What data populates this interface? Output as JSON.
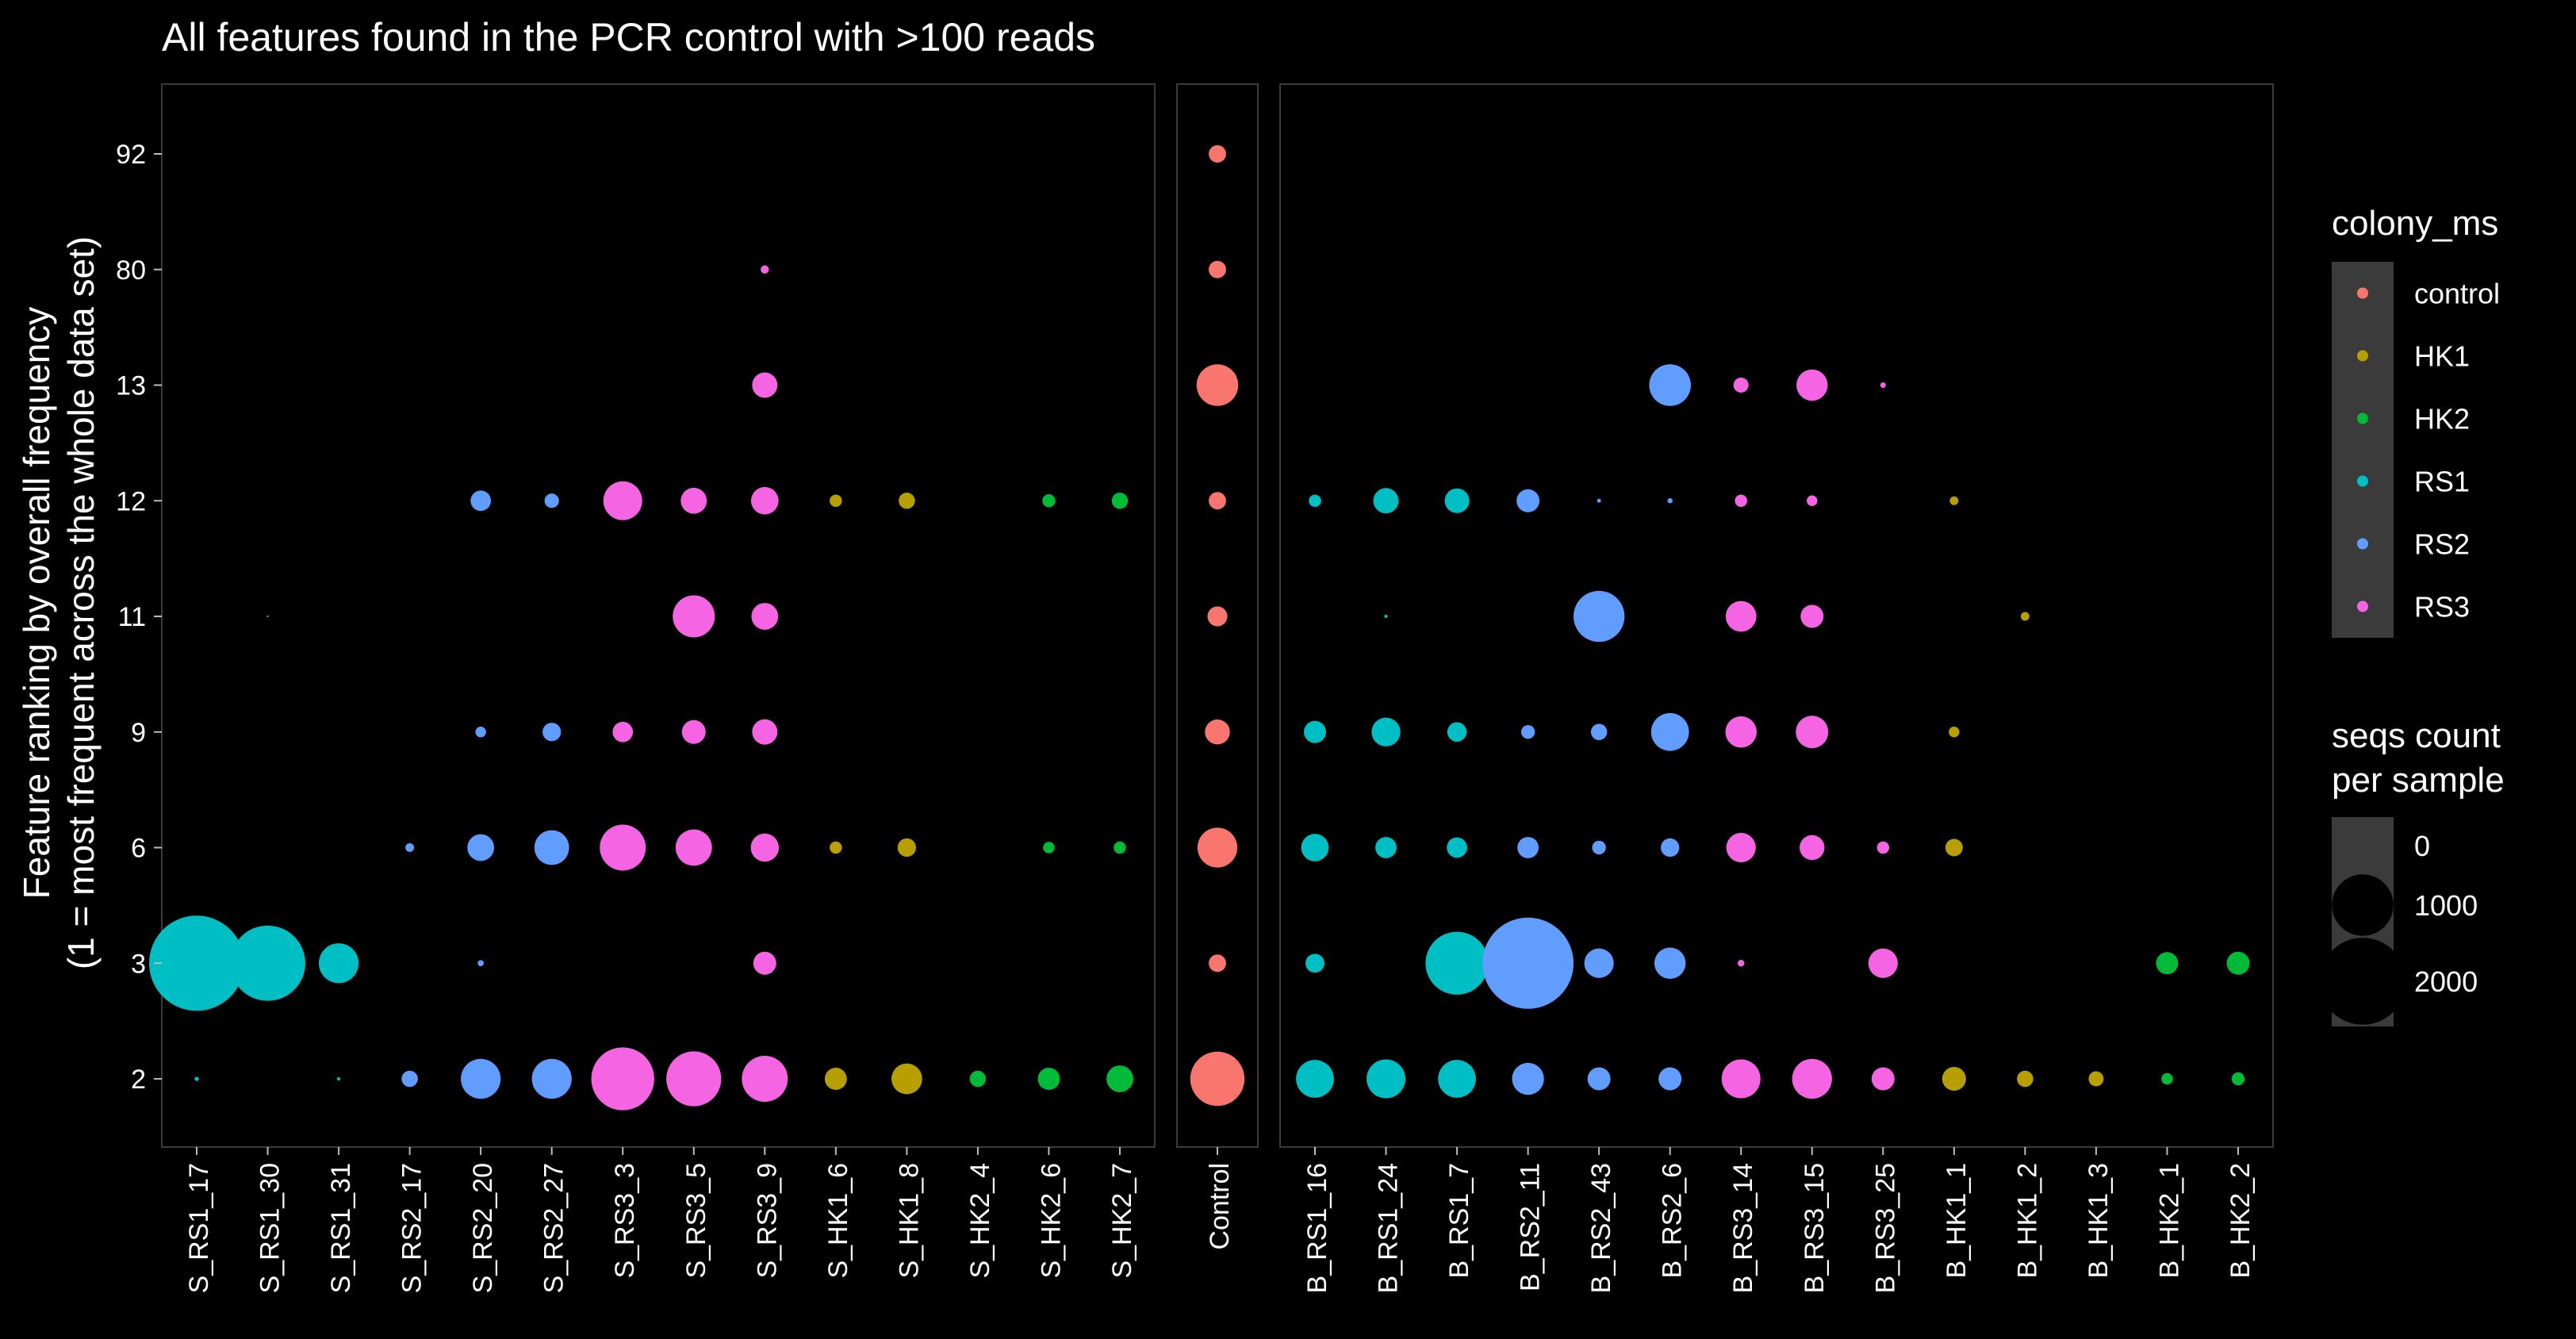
{
  "chart_data": {
    "type": "scatter",
    "title": "All features found in the PCR control with >100 reads",
    "ylabel_lines": [
      "Feature ranking by overall frequency",
      "(1 = most frequent across the whole data set)"
    ],
    "xlabel": "",
    "y_categories": [
      "2",
      "3",
      "6",
      "9",
      "11",
      "12",
      "13",
      "80",
      "92"
    ],
    "panels": [
      {
        "name": "samples-s",
        "samples": [
          "S_RS1_17",
          "S_RS1_30",
          "S_RS1_31",
          "S_RS2_17",
          "S_RS2_20",
          "S_RS2_27",
          "S_RS3_3",
          "S_RS3_5",
          "S_RS3_9",
          "S_HK1_6",
          "S_HK1_8",
          "S_HK2_4",
          "S_HK2_6",
          "S_HK2_7"
        ],
        "colony": [
          "RS1",
          "RS1",
          "RS1",
          "RS2",
          "RS2",
          "RS2",
          "RS3",
          "RS3",
          "RS3",
          "HK1",
          "HK1",
          "HK2",
          "HK2",
          "HK2"
        ]
      },
      {
        "name": "control",
        "samples": [
          "Control"
        ],
        "colony": [
          "control"
        ]
      },
      {
        "name": "samples-b",
        "samples": [
          "B_RS1_16",
          "B_RS1_24",
          "B_RS1_7",
          "B_RS2_11",
          "B_RS2_43",
          "B_RS2_6",
          "B_RS3_14",
          "B_RS3_15",
          "B_RS3_25",
          "B_HK1_1",
          "B_HK1_2",
          "B_HK1_3",
          "B_HK2_1",
          "B_HK2_2"
        ],
        "colony": [
          "RS1",
          "RS1",
          "RS1",
          "RS2",
          "RS2",
          "RS2",
          "RS3",
          "RS3",
          "RS3",
          "HK1",
          "HK1",
          "HK1",
          "HK2",
          "HK2"
        ]
      }
    ],
    "points": [
      [
        "S_RS1_17",
        "2",
        5
      ],
      [
        "S_RS1_17",
        "3",
        2400
      ],
      [
        "S_RS1_30",
        "3",
        1500
      ],
      [
        "S_RS1_30",
        "11",
        1
      ],
      [
        "S_RS1_31",
        "2",
        3
      ],
      [
        "S_RS1_31",
        "3",
        420
      ],
      [
        "S_RS2_17",
        "2",
        70
      ],
      [
        "S_RS2_17",
        "6",
        20
      ],
      [
        "S_RS2_20",
        "2",
        420
      ],
      [
        "S_RS2_20",
        "3",
        10
      ],
      [
        "S_RS2_20",
        "6",
        190
      ],
      [
        "S_RS2_20",
        "9",
        30
      ],
      [
        "S_RS2_20",
        "12",
        110
      ],
      [
        "S_RS2_27",
        "2",
        420
      ],
      [
        "S_RS2_27",
        "6",
        320
      ],
      [
        "S_RS2_27",
        "9",
        90
      ],
      [
        "S_RS2_27",
        "12",
        55
      ],
      [
        "S_RS3_3",
        "2",
        1050
      ],
      [
        "S_RS3_3",
        "6",
        560
      ],
      [
        "S_RS3_3",
        "9",
        110
      ],
      [
        "S_RS3_3",
        "12",
        400
      ],
      [
        "S_RS3_5",
        "2",
        800
      ],
      [
        "S_RS3_5",
        "6",
        350
      ],
      [
        "S_RS3_5",
        "9",
        150
      ],
      [
        "S_RS3_5",
        "11",
        470
      ],
      [
        "S_RS3_5",
        "12",
        180
      ],
      [
        "S_RS3_9",
        "2",
        560
      ],
      [
        "S_RS3_9",
        "3",
        140
      ],
      [
        "S_RS3_9",
        "6",
        210
      ],
      [
        "S_RS3_9",
        "9",
        170
      ],
      [
        "S_RS3_9",
        "11",
        190
      ],
      [
        "S_RS3_9",
        "12",
        200
      ],
      [
        "S_RS3_9",
        "13",
        170
      ],
      [
        "S_RS3_9",
        "80",
        18
      ],
      [
        "S_HK1_6",
        "2",
        130
      ],
      [
        "S_HK1_6",
        "6",
        40
      ],
      [
        "S_HK1_6",
        "12",
        40
      ],
      [
        "S_HK1_8",
        "2",
        250
      ],
      [
        "S_HK1_8",
        "6",
        90
      ],
      [
        "S_HK1_8",
        "12",
        70
      ],
      [
        "S_HK2_4",
        "2",
        70
      ],
      [
        "S_HK2_6",
        "2",
        130
      ],
      [
        "S_HK2_6",
        "6",
        35
      ],
      [
        "S_HK2_6",
        "12",
        45
      ],
      [
        "S_HK2_7",
        "2",
        190
      ],
      [
        "S_HK2_7",
        "6",
        40
      ],
      [
        "S_HK2_7",
        "12",
        70
      ],
      [
        "Control",
        "2",
        780
      ],
      [
        "Control",
        "3",
        80
      ],
      [
        "Control",
        "6",
        420
      ],
      [
        "Control",
        "9",
        165
      ],
      [
        "Control",
        "11",
        105
      ],
      [
        "Control",
        "12",
        80
      ],
      [
        "Control",
        "13",
        460
      ],
      [
        "Control",
        "80",
        80
      ],
      [
        "Control",
        "92",
        80
      ],
      [
        "B_RS1_16",
        "2",
        380
      ],
      [
        "B_RS1_16",
        "3",
        95
      ],
      [
        "B_RS1_16",
        "6",
        200
      ],
      [
        "B_RS1_16",
        "9",
        130
      ],
      [
        "B_RS1_16",
        "12",
        40
      ],
      [
        "B_RS1_24",
        "2",
        400
      ],
      [
        "B_RS1_24",
        "6",
        120
      ],
      [
        "B_RS1_24",
        "9",
        220
      ],
      [
        "B_RS1_24",
        "11",
        3
      ],
      [
        "B_RS1_24",
        "12",
        170
      ],
      [
        "B_RS1_7",
        "2",
        380
      ],
      [
        "B_RS1_7",
        "3",
        1050
      ],
      [
        "B_RS1_7",
        "6",
        110
      ],
      [
        "B_RS1_7",
        "9",
        100
      ],
      [
        "B_RS1_7",
        "12",
        160
      ],
      [
        "B_RS2_11",
        "2",
        270
      ],
      [
        "B_RS2_11",
        "3",
        2200
      ],
      [
        "B_RS2_11",
        "6",
        120
      ],
      [
        "B_RS2_11",
        "9",
        50
      ],
      [
        "B_RS2_11",
        "12",
        140
      ],
      [
        "B_RS2_43",
        "2",
        140
      ],
      [
        "B_RS2_43",
        "3",
        230
      ],
      [
        "B_RS2_43",
        "6",
        50
      ],
      [
        "B_RS2_43",
        "9",
        70
      ],
      [
        "B_RS2_43",
        "11",
        690
      ],
      [
        "B_RS2_43",
        "12",
        4
      ],
      [
        "B_RS2_6",
        "2",
        140
      ],
      [
        "B_RS2_6",
        "3",
        260
      ],
      [
        "B_RS2_6",
        "6",
        90
      ],
      [
        "B_RS2_6",
        "9",
        380
      ],
      [
        "B_RS2_6",
        "12",
        7
      ],
      [
        "B_RS2_6",
        "13",
        460
      ],
      [
        "B_RS3_14",
        "2",
        400
      ],
      [
        "B_RS3_14",
        "3",
        12
      ],
      [
        "B_RS3_14",
        "6",
        230
      ],
      [
        "B_RS3_14",
        "9",
        260
      ],
      [
        "B_RS3_14",
        "11",
        250
      ],
      [
        "B_RS3_14",
        "12",
        40
      ],
      [
        "B_RS3_14",
        "13",
        60
      ],
      [
        "B_RS3_15",
        "2",
        420
      ],
      [
        "B_RS3_15",
        "6",
        165
      ],
      [
        "B_RS3_15",
        "9",
        280
      ],
      [
        "B_RS3_15",
        "11",
        140
      ],
      [
        "B_RS3_15",
        "12",
        30
      ],
      [
        "B_RS3_15",
        "13",
        260
      ],
      [
        "B_RS3_25",
        "2",
        140
      ],
      [
        "B_RS3_25",
        "3",
        230
      ],
      [
        "B_RS3_25",
        "6",
        40
      ],
      [
        "B_RS3_25",
        "13",
        8
      ],
      [
        "B_HK1_1",
        "2",
        150
      ],
      [
        "B_HK1_1",
        "6",
        80
      ],
      [
        "B_HK1_1",
        "9",
        30
      ],
      [
        "B_HK1_1",
        "12",
        20
      ],
      [
        "B_HK1_2",
        "2",
        70
      ],
      [
        "B_HK1_2",
        "11",
        20
      ],
      [
        "B_HK1_3",
        "2",
        60
      ],
      [
        "B_HK2_1",
        "2",
        35
      ],
      [
        "B_HK2_1",
        "3",
        130
      ],
      [
        "B_HK2_2",
        "2",
        45
      ],
      [
        "B_HK2_2",
        "3",
        140
      ]
    ],
    "legend": {
      "color_title": "colony_ms",
      "color_items": [
        {
          "label": "control",
          "color": "#F8766D"
        },
        {
          "label": "HK1",
          "color": "#B79F00"
        },
        {
          "label": "HK2",
          "color": "#00BA38"
        },
        {
          "label": "RS1",
          "color": "#00BFC4"
        },
        {
          "label": "RS2",
          "color": "#619CFF"
        },
        {
          "label": "RS3",
          "color": "#F564E3"
        }
      ],
      "size_title_lines": [
        "seqs count",
        "per sample"
      ],
      "size_items": [
        {
          "label": "0",
          "value": 0
        },
        {
          "label": "1000",
          "value": 1000
        },
        {
          "label": "2000",
          "value": 2000
        }
      ],
      "max_value": 2400,
      "position": "right"
    },
    "colors": {
      "background": "#000000",
      "panel_border": "#3a3a3a",
      "legend_key_bg": "#3b3b3b",
      "text": "#ffffff"
    }
  }
}
